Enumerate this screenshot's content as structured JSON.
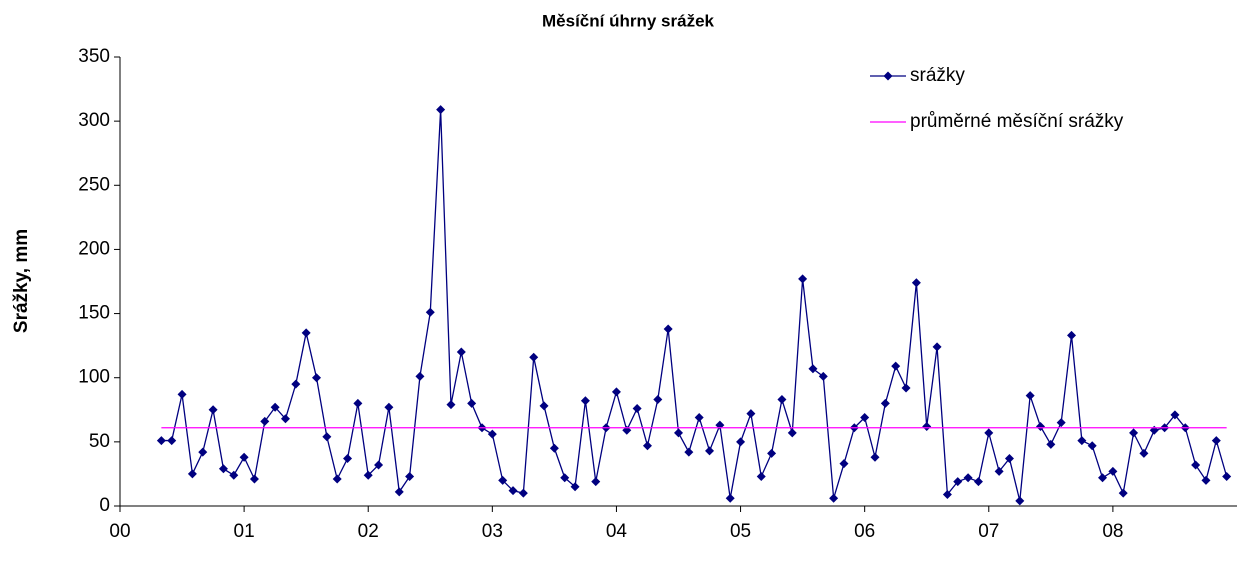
{
  "chart_data": {
    "type": "line",
    "title": "Měsíční úhrny srážek",
    "y_label": "Srážky, mm",
    "xlim": [
      0,
      108
    ],
    "xticks": [
      {
        "value": 0,
        "label": "00"
      },
      {
        "value": 12,
        "label": "01"
      },
      {
        "value": 24,
        "label": "02"
      },
      {
        "value": 36,
        "label": "03"
      },
      {
        "value": 48,
        "label": "04"
      },
      {
        "value": 60,
        "label": "05"
      },
      {
        "value": 72,
        "label": "06"
      },
      {
        "value": 84,
        "label": "07"
      },
      {
        "value": 96,
        "label": "08"
      }
    ],
    "ylim": [
      0,
      350
    ],
    "yticks": [
      0,
      50,
      100,
      150,
      200,
      250,
      300,
      350
    ],
    "grid": false,
    "legend": "top-right",
    "series": [
      {
        "name": "srážky",
        "color": "#000080",
        "marker": "diamond",
        "x": [
          4,
          5,
          6,
          7,
          8,
          9,
          10,
          11,
          12,
          13,
          14,
          15,
          16,
          17,
          18,
          19,
          20,
          21,
          22,
          23,
          24,
          25,
          26,
          27,
          28,
          29,
          30,
          31,
          32,
          33,
          34,
          35,
          36,
          37,
          38,
          39,
          40,
          41,
          42,
          43,
          44,
          45,
          46,
          47,
          48,
          49,
          50,
          51,
          52,
          53,
          54,
          55,
          56,
          57,
          58,
          59,
          60,
          61,
          62,
          63,
          64,
          65,
          66,
          67,
          68,
          69,
          70,
          71,
          72,
          73,
          74,
          75,
          76,
          77,
          78,
          79,
          80,
          81,
          82,
          83,
          84,
          85,
          86,
          87,
          88,
          89,
          90,
          91,
          92,
          93,
          94,
          95,
          96,
          97,
          98,
          99,
          100,
          101,
          102,
          103,
          104,
          105,
          106,
          107
        ],
        "values": [
          51,
          51,
          87,
          25,
          42,
          75,
          29,
          24,
          38,
          21,
          66,
          77,
          68,
          95,
          135,
          100,
          54,
          21,
          37,
          80,
          24,
          32,
          77,
          11,
          23,
          101,
          151,
          309,
          79,
          120,
          80,
          61,
          56,
          20,
          12,
          10,
          116,
          78,
          45,
          22,
          15,
          82,
          19,
          61,
          89,
          59,
          76,
          47,
          83,
          138,
          57,
          42,
          69,
          43,
          63,
          6,
          50,
          72,
          23,
          41,
          83,
          57,
          177,
          107,
          101,
          6,
          33,
          61,
          69,
          38,
          80,
          109,
          92,
          174,
          62,
          124,
          9,
          19,
          22,
          19,
          57,
          27,
          37,
          4,
          86,
          62,
          48,
          65,
          133,
          51,
          47,
          22,
          27,
          10,
          57,
          41,
          59,
          61,
          71,
          61,
          32,
          20,
          51,
          23
        ]
      },
      {
        "name": "průměrné měsíční srážky",
        "color": "#ff00ff",
        "marker": "none",
        "x": [
          4,
          107
        ],
        "values": [
          61,
          61
        ]
      }
    ]
  }
}
